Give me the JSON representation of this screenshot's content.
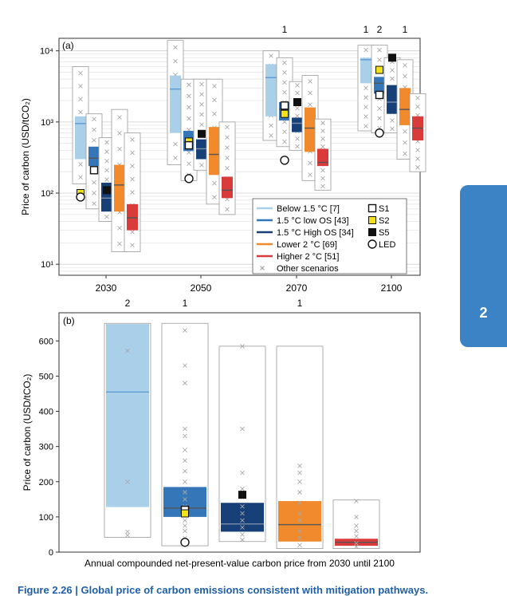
{
  "caption": "Figure 2.26 | Global price of carbon emissions consistent with mitigation pathways.",
  "chapter_tab": "2",
  "colors": {
    "below15": "#a9cfe9",
    "below15_median": "#5b9bd5",
    "low_os": "#3576b8",
    "high_os": "#173f78",
    "lower2": "#f08a2c",
    "higher2": "#d93a3a",
    "marker_s2": "#f2e21b",
    "marker_s5": "#111111"
  },
  "chart_data": [
    {
      "type": "box",
      "panel_label": "(a)",
      "yscale": "log",
      "ylim": [
        7,
        15000
      ],
      "ylabel": "Price of carbon (USD/tCO₂)",
      "ytick_values": [
        10,
        100,
        1000,
        10000
      ],
      "ytick_labels": [
        "10¹",
        "10²",
        "10³",
        "10⁴"
      ],
      "categories": [
        "2030",
        "2050",
        "2070",
        "2100"
      ],
      "top_counts": [
        {
          "category": "2070",
          "slot": 1,
          "text": "1"
        },
        {
          "category": "2100",
          "slot": 0,
          "text": "1"
        },
        {
          "category": "2100",
          "slot": 1,
          "text": "2"
        },
        {
          "category": "2100",
          "slot": 3,
          "text": "1"
        }
      ],
      "legend": [
        {
          "label": "Below 1.5 °C [7]",
          "series": "below15"
        },
        {
          "label": "1.5 °C low OS [43]",
          "series": "low_os"
        },
        {
          "label": "1.5 °C High OS [34]",
          "series": "high_os"
        },
        {
          "label": "Lower  2 °C [69]",
          "series": "lower2"
        },
        {
          "label": "Higher  2 °C [51]",
          "series": "higher2"
        },
        {
          "label": "Other scenarios",
          "series": "other"
        }
      ],
      "legend_markers": [
        {
          "label": "S1",
          "shape": "open-square"
        },
        {
          "label": "S2",
          "shape": "yellow-square"
        },
        {
          "label": "S5",
          "shape": "black-square"
        },
        {
          "label": "LED",
          "shape": "open-circle"
        }
      ],
      "legend_position": "bottom-right",
      "series": [
        {
          "name": "below15",
          "boxes": [
            {
              "category": "2030",
              "min": 135,
              "q1": 300,
              "median": 950,
              "q3": 1200,
              "max": 6000
            },
            {
              "category": "2050",
              "min": 250,
              "q1": 700,
              "median": 2900,
              "q3": 4500,
              "max": 14000
            },
            {
              "category": "2070",
              "min": 550,
              "q1": 1200,
              "median": 4200,
              "q3": 6500,
              "max": 10000
            },
            {
              "category": "2100",
              "min": 750,
              "q1": 3500,
              "median": 7500,
              "q3": 8000,
              "max": 12000
            }
          ]
        },
        {
          "name": "low_os",
          "boxes": [
            {
              "category": "2030",
              "min": 60,
              "q1": 240,
              "median": 310,
              "q3": 450,
              "max": 1300
            },
            {
              "category": "2050",
              "min": 150,
              "q1": 390,
              "median": 520,
              "q3": 750,
              "max": 4000
            },
            {
              "category": "2070",
              "min": 450,
              "q1": 1050,
              "median": 1500,
              "q3": 1900,
              "max": 8000
            },
            {
              "category": "2100",
              "min": 700,
              "q1": 2500,
              "median": 3500,
              "q3": 4300,
              "max": 12000
            }
          ]
        },
        {
          "name": "high_os",
          "boxes": [
            {
              "category": "2030",
              "min": 40,
              "q1": 55,
              "median": 85,
              "q3": 140,
              "max": 600
            },
            {
              "category": "2050",
              "min": 210,
              "q1": 300,
              "median": 420,
              "q3": 570,
              "max": 4000
            },
            {
              "category": "2070",
              "min": 400,
              "q1": 720,
              "median": 960,
              "q3": 1150,
              "max": 3700
            },
            {
              "category": "2100",
              "min": 700,
              "q1": 1300,
              "median": 1900,
              "q3": 3300,
              "max": 8000
            }
          ]
        },
        {
          "name": "lower2",
          "boxes": [
            {
              "category": "2030",
              "min": 15,
              "q1": 55,
              "median": 130,
              "q3": 250,
              "max": 1500
            },
            {
              "category": "2050",
              "min": 70,
              "q1": 180,
              "median": 350,
              "q3": 850,
              "max": 4000
            },
            {
              "category": "2070",
              "min": 150,
              "q1": 380,
              "median": 820,
              "q3": 1600,
              "max": 4500
            },
            {
              "category": "2100",
              "min": 300,
              "q1": 900,
              "median": 1500,
              "q3": 3000,
              "max": 7500
            }
          ]
        },
        {
          "name": "higher2",
          "boxes": [
            {
              "category": "2030",
              "min": 15,
              "q1": 30,
              "median": 45,
              "q3": 70,
              "max": 700
            },
            {
              "category": "2050",
              "min": 50,
              "q1": 85,
              "median": 110,
              "q3": 170,
              "max": 1000
            },
            {
              "category": "2070",
              "min": 110,
              "q1": 240,
              "median": 270,
              "q3": 420,
              "max": 1100
            },
            {
              "category": "2100",
              "min": 200,
              "q1": 550,
              "median": 820,
              "q3": 1200,
              "max": 2500
            }
          ]
        }
      ],
      "markers": [
        {
          "category": "2030",
          "series": "low_os",
          "shape": "open-square",
          "value": 210
        },
        {
          "category": "2030",
          "series": "below15",
          "shape": "yellow-square",
          "value": 100
        },
        {
          "category": "2030",
          "series": "below15",
          "shape": "open-circle",
          "value": 88
        },
        {
          "category": "2030",
          "series": "high_os",
          "shape": "black-square",
          "value": 110
        },
        {
          "category": "2050",
          "series": "low_os",
          "shape": "yellow-square",
          "value": 530
        },
        {
          "category": "2050",
          "series": "low_os",
          "shape": "open-square",
          "value": 470
        },
        {
          "category": "2050",
          "series": "low_os",
          "shape": "open-circle",
          "value": 160
        },
        {
          "category": "2050",
          "series": "high_os",
          "shape": "black-square",
          "value": 680
        },
        {
          "category": "2070",
          "series": "low_os",
          "shape": "open-square",
          "value": 1700
        },
        {
          "category": "2070",
          "series": "low_os",
          "shape": "yellow-square",
          "value": 1300
        },
        {
          "category": "2070",
          "series": "low_os",
          "shape": "open-circle",
          "value": 290
        },
        {
          "category": "2070",
          "series": "high_os",
          "shape": "black-square",
          "value": 1900
        },
        {
          "category": "2100",
          "series": "low_os",
          "shape": "yellow-square",
          "value": 5400
        },
        {
          "category": "2100",
          "series": "low_os",
          "shape": "open-square",
          "value": 2400
        },
        {
          "category": "2100",
          "series": "low_os",
          "shape": "open-circle",
          "value": 700
        },
        {
          "category": "2100",
          "series": "high_os",
          "shape": "black-square",
          "value": 8000
        }
      ]
    },
    {
      "type": "box",
      "panel_label": "(b)",
      "xlabel": "Annual compounded net-present-value carbon price from 2030 until 2100",
      "ylabel": "Price of carbon (USD/tCO₂)",
      "ylim": [
        0,
        680
      ],
      "yticks": [
        0,
        100,
        200,
        300,
        400,
        500,
        600
      ],
      "top_counts": [
        {
          "series": "below15",
          "text": "2"
        },
        {
          "series": "low_os",
          "text": "1"
        },
        {
          "series": "lower2",
          "text": "1"
        }
      ],
      "series": [
        {
          "name": "below15",
          "min": 42,
          "q1": 128,
          "median": 455,
          "q3": 648,
          "max": 650,
          "other_scenarios": [
            48,
            58,
            200,
            572
          ]
        },
        {
          "name": "low_os",
          "min": 18,
          "q1": 100,
          "median": 125,
          "q3": 185,
          "max": 650,
          "other_scenarios": [
            40,
            60,
            75,
            90,
            110,
            130,
            150,
            170,
            200,
            230,
            260,
            290,
            330,
            350,
            480,
            530,
            630
          ]
        },
        {
          "name": "high_os",
          "min": 30,
          "q1": 58,
          "median": 80,
          "q3": 140,
          "max": 585,
          "other_scenarios": [
            35,
            50,
            70,
            90,
            110,
            130,
            180,
            225,
            350,
            585
          ]
        },
        {
          "name": "lower2",
          "min": 10,
          "q1": 30,
          "median": 78,
          "q3": 145,
          "max": 585,
          "other_scenarios": [
            20,
            40,
            60,
            90,
            110,
            140,
            170,
            200,
            225,
            245
          ]
        },
        {
          "name": "higher2",
          "min": 10,
          "q1": 18,
          "median": 28,
          "q3": 38,
          "max": 148,
          "other_scenarios": [
            15,
            25,
            45,
            60,
            75,
            100,
            145
          ]
        }
      ],
      "markers": [
        {
          "series": "low_os",
          "shape": "open-square",
          "value": 120
        },
        {
          "series": "low_os",
          "shape": "yellow-square",
          "value": 110
        },
        {
          "series": "low_os",
          "shape": "open-circle",
          "value": 28
        },
        {
          "series": "high_os",
          "shape": "black-square",
          "value": 163
        }
      ]
    }
  ]
}
